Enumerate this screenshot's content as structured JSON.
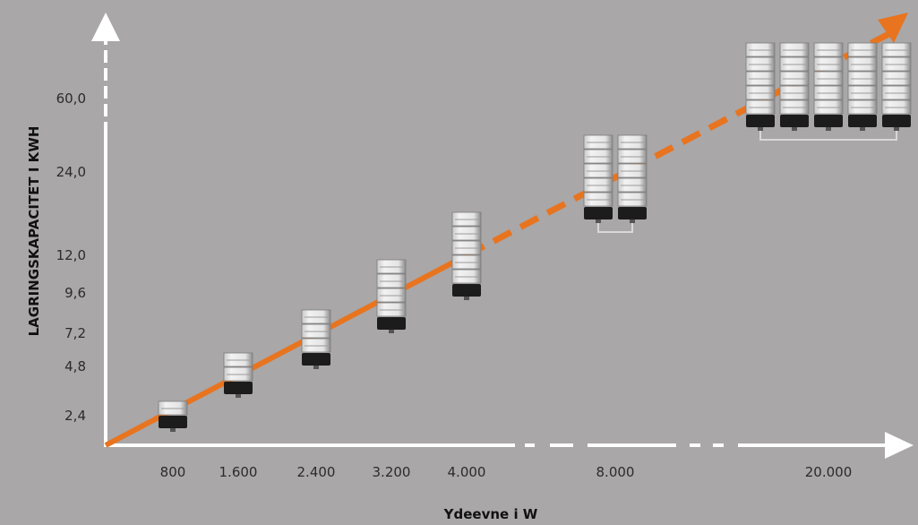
{
  "chart_data": {
    "type": "line",
    "title": "",
    "xlabel": "Ydeevne i W",
    "ylabel": "LAGRINGSKAPACITET I KWH",
    "x_ticks": [
      "800",
      "1.600",
      "2.400",
      "3.200",
      "4.000",
      "8.000",
      "20.000"
    ],
    "y_ticks": [
      "2,4",
      "4,8",
      "7,2",
      "9,6",
      "12,0",
      "24,0",
      "60,0"
    ],
    "x_axis_breaks": true,
    "y_axis_breaks": true,
    "grid": false,
    "legend": "none",
    "series": [
      {
        "points": [
          {
            "x": "800",
            "y": "2,4"
          },
          {
            "x": "1.600",
            "y": "4,8"
          },
          {
            "x": "2.400",
            "y": "7,2"
          },
          {
            "x": "3.200",
            "y": "9,6"
          },
          {
            "x": "4.000",
            "y": "12,0"
          },
          {
            "x": "8.000",
            "y": "24,0"
          },
          {
            "x": "20.000",
            "y": "60,0"
          }
        ]
      }
    ],
    "battery_stacks": [
      {
        "x": "800",
        "towers": 1,
        "modules_per_tower": 1
      },
      {
        "x": "1.600",
        "towers": 1,
        "modules_per_tower": 2
      },
      {
        "x": "2.400",
        "towers": 1,
        "modules_per_tower": 3
      },
      {
        "x": "3.200",
        "towers": 1,
        "modules_per_tower": 4
      },
      {
        "x": "4.000",
        "towers": 1,
        "modules_per_tower": 5
      },
      {
        "x": "8.000",
        "towers": 2,
        "modules_per_tower": 5
      },
      {
        "x": "20.000",
        "towers": 5,
        "modules_per_tower": 5
      }
    ]
  },
  "colors": {
    "background": "#a9a7a8",
    "axis": "#ffffff",
    "trend_line": "#e8741f",
    "module_light": "#e6e6e6",
    "module_base": "#1c1c1c"
  }
}
